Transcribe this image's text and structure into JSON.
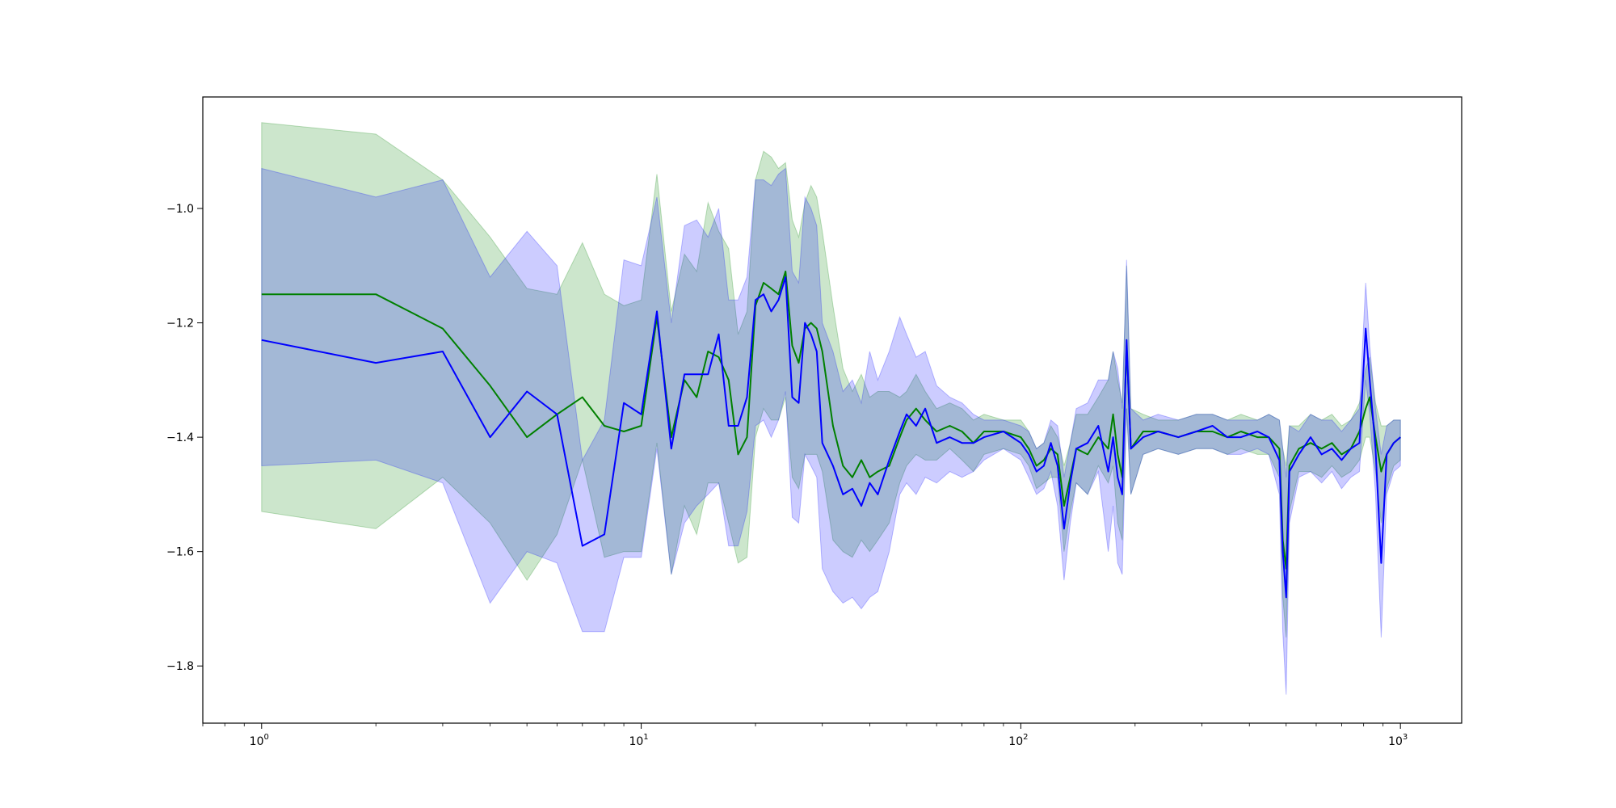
{
  "chart_data": {
    "type": "line",
    "title": "",
    "xlabel": "",
    "ylabel": "",
    "x_scale": "log",
    "xlim": [
      0.7,
      1450
    ],
    "ylim": [
      -1.9,
      -0.805
    ],
    "grid": false,
    "legend": "none",
    "x_ticks": [
      {
        "value": 1,
        "base": "10",
        "exp": "0"
      },
      {
        "value": 10,
        "base": "10",
        "exp": "1"
      },
      {
        "value": 100,
        "base": "10",
        "exp": "2"
      },
      {
        "value": 1000,
        "base": "10",
        "exp": "3"
      }
    ],
    "y_ticks": [
      {
        "value": -1.8,
        "label": "−1.8"
      },
      {
        "value": -1.6,
        "label": "−1.6"
      },
      {
        "value": -1.4,
        "label": "−1.4"
      },
      {
        "value": -1.2,
        "label": "−1.2"
      },
      {
        "value": -1.0,
        "label": "−1.0"
      }
    ],
    "series": [
      {
        "color": "#008000",
        "band_color": "#008000",
        "band_opacity": 0.2,
        "points": [
          [
            1,
            -1.15,
            -1.53,
            -0.85
          ],
          [
            2,
            -1.15,
            -1.56,
            -0.87
          ],
          [
            3,
            -1.21,
            -1.47,
            -0.95
          ],
          [
            4,
            -1.31,
            -1.55,
            -1.05
          ],
          [
            5,
            -1.4,
            -1.65,
            -1.14
          ],
          [
            6,
            -1.36,
            -1.57,
            -1.15
          ],
          [
            7,
            -1.33,
            -1.44,
            -1.06
          ],
          [
            8,
            -1.38,
            -1.61,
            -1.15
          ],
          [
            9,
            -1.39,
            -1.6,
            -1.17
          ],
          [
            10,
            -1.38,
            -1.6,
            -1.16
          ],
          [
            11,
            -1.19,
            -1.41,
            -0.94
          ],
          [
            12,
            -1.4,
            -1.64,
            -1.18
          ],
          [
            13,
            -1.3,
            -1.52,
            -1.08
          ],
          [
            14,
            -1.33,
            -1.57,
            -1.11
          ],
          [
            15,
            -1.25,
            -1.48,
            -0.99
          ],
          [
            16,
            -1.26,
            -1.48,
            -1.04
          ],
          [
            17,
            -1.3,
            -1.55,
            -1.07
          ],
          [
            18,
            -1.43,
            -1.62,
            -1.22
          ],
          [
            19,
            -1.4,
            -1.61,
            -1.18
          ],
          [
            20,
            -1.17,
            -1.4,
            -0.95
          ],
          [
            21,
            -1.13,
            -1.35,
            -0.9
          ],
          [
            22,
            -1.14,
            -1.37,
            -0.91
          ],
          [
            23,
            -1.15,
            -1.37,
            -0.93
          ],
          [
            24,
            -1.11,
            -1.33,
            -0.92
          ],
          [
            25,
            -1.24,
            -1.47,
            -1.02
          ],
          [
            26,
            -1.27,
            -1.49,
            -1.05
          ],
          [
            27,
            -1.21,
            -1.43,
            -0.99
          ],
          [
            28,
            -1.2,
            -1.43,
            -0.96
          ],
          [
            29,
            -1.21,
            -1.43,
            -0.98
          ],
          [
            30,
            -1.25,
            -1.46,
            -1.04
          ],
          [
            32,
            -1.38,
            -1.58,
            -1.17
          ],
          [
            34,
            -1.45,
            -1.6,
            -1.28
          ],
          [
            36,
            -1.47,
            -1.61,
            -1.32
          ],
          [
            38,
            -1.44,
            -1.58,
            -1.29
          ],
          [
            40,
            -1.47,
            -1.6,
            -1.33
          ],
          [
            42,
            -1.46,
            -1.58,
            -1.32
          ],
          [
            45,
            -1.45,
            -1.55,
            -1.32
          ],
          [
            48,
            -1.4,
            -1.48,
            -1.33
          ],
          [
            50,
            -1.37,
            -1.45,
            -1.32
          ],
          [
            53,
            -1.35,
            -1.43,
            -1.29
          ],
          [
            56,
            -1.37,
            -1.44,
            -1.32
          ],
          [
            60,
            -1.39,
            -1.44,
            -1.35
          ],
          [
            65,
            -1.38,
            -1.42,
            -1.34
          ],
          [
            70,
            -1.39,
            -1.44,
            -1.35
          ],
          [
            75,
            -1.41,
            -1.46,
            -1.37
          ],
          [
            80,
            -1.39,
            -1.43,
            -1.36
          ],
          [
            90,
            -1.39,
            -1.42,
            -1.37
          ],
          [
            100,
            -1.4,
            -1.43,
            -1.37
          ],
          [
            105,
            -1.42,
            -1.45,
            -1.39
          ],
          [
            110,
            -1.45,
            -1.49,
            -1.42
          ],
          [
            115,
            -1.44,
            -1.48,
            -1.41
          ],
          [
            120,
            -1.42,
            -1.47,
            -1.38
          ],
          [
            125,
            -1.43,
            -1.47,
            -1.4
          ],
          [
            130,
            -1.52,
            -1.6,
            -1.45
          ],
          [
            135,
            -1.47,
            -1.53,
            -1.41
          ],
          [
            140,
            -1.42,
            -1.48,
            -1.36
          ],
          [
            150,
            -1.43,
            -1.5,
            -1.36
          ],
          [
            160,
            -1.4,
            -1.45,
            -1.33
          ],
          [
            170,
            -1.42,
            -1.48,
            -1.3
          ],
          [
            175,
            -1.36,
            -1.45,
            -1.25
          ],
          [
            180,
            -1.43,
            -1.55,
            -1.3
          ],
          [
            185,
            -1.47,
            -1.58,
            -1.34
          ],
          [
            190,
            -1.24,
            -1.35,
            -1.1
          ],
          [
            195,
            -1.42,
            -1.5,
            -1.35
          ],
          [
            210,
            -1.39,
            -1.43,
            -1.36
          ],
          [
            230,
            -1.39,
            -1.42,
            -1.37
          ],
          [
            260,
            -1.4,
            -1.43,
            -1.37
          ],
          [
            290,
            -1.39,
            -1.42,
            -1.36
          ],
          [
            320,
            -1.39,
            -1.42,
            -1.36
          ],
          [
            350,
            -1.4,
            -1.43,
            -1.37
          ],
          [
            380,
            -1.39,
            -1.42,
            -1.36
          ],
          [
            420,
            -1.4,
            -1.43,
            -1.37
          ],
          [
            450,
            -1.4,
            -1.43,
            -1.36
          ],
          [
            480,
            -1.42,
            -1.47,
            -1.37
          ],
          [
            490,
            -1.58,
            -1.68,
            -1.42
          ],
          [
            500,
            -1.63,
            -1.75,
            -1.45
          ],
          [
            510,
            -1.45,
            -1.53,
            -1.38
          ],
          [
            540,
            -1.42,
            -1.46,
            -1.38
          ],
          [
            580,
            -1.41,
            -1.46,
            -1.36
          ],
          [
            620,
            -1.42,
            -1.47,
            -1.37
          ],
          [
            660,
            -1.41,
            -1.45,
            -1.36
          ],
          [
            700,
            -1.43,
            -1.47,
            -1.38
          ],
          [
            740,
            -1.42,
            -1.46,
            -1.37
          ],
          [
            780,
            -1.39,
            -1.44,
            -1.34
          ],
          [
            810,
            -1.35,
            -1.4,
            -1.28
          ],
          [
            830,
            -1.33,
            -1.4,
            -1.26
          ],
          [
            860,
            -1.4,
            -1.46,
            -1.34
          ],
          [
            890,
            -1.46,
            -1.55,
            -1.38
          ],
          [
            920,
            -1.43,
            -1.49,
            -1.38
          ],
          [
            960,
            -1.41,
            -1.45,
            -1.37
          ],
          [
            1000,
            -1.4,
            -1.44,
            -1.37
          ]
        ]
      },
      {
        "color": "#0000ff",
        "band_color": "#0000ff",
        "band_opacity": 0.2,
        "points": [
          [
            1,
            -1.23,
            -1.45,
            -0.93
          ],
          [
            2,
            -1.27,
            -1.44,
            -0.98
          ],
          [
            3,
            -1.25,
            -1.48,
            -0.95
          ],
          [
            4,
            -1.4,
            -1.69,
            -1.12
          ],
          [
            5,
            -1.32,
            -1.6,
            -1.04
          ],
          [
            6,
            -1.36,
            -1.62,
            -1.1
          ],
          [
            7,
            -1.59,
            -1.74,
            -1.44
          ],
          [
            8,
            -1.57,
            -1.74,
            -1.37
          ],
          [
            9,
            -1.34,
            -1.61,
            -1.09
          ],
          [
            10,
            -1.36,
            -1.61,
            -1.1
          ],
          [
            11,
            -1.18,
            -1.42,
            -0.98
          ],
          [
            12,
            -1.42,
            -1.64,
            -1.2
          ],
          [
            13,
            -1.29,
            -1.55,
            -1.03
          ],
          [
            14,
            -1.29,
            -1.52,
            -1.02
          ],
          [
            15,
            -1.29,
            -1.5,
            -1.05
          ],
          [
            16,
            -1.22,
            -1.48,
            -1.0
          ],
          [
            17,
            -1.38,
            -1.59,
            -1.16
          ],
          [
            18,
            -1.38,
            -1.59,
            -1.16
          ],
          [
            19,
            -1.33,
            -1.53,
            -1.12
          ],
          [
            20,
            -1.16,
            -1.38,
            -0.95
          ],
          [
            21,
            -1.15,
            -1.37,
            -0.95
          ],
          [
            22,
            -1.18,
            -1.4,
            -0.96
          ],
          [
            23,
            -1.16,
            -1.37,
            -0.94
          ],
          [
            24,
            -1.12,
            -1.32,
            -0.93
          ],
          [
            25,
            -1.33,
            -1.54,
            -1.11
          ],
          [
            26,
            -1.34,
            -1.55,
            -1.13
          ],
          [
            27,
            -1.2,
            -1.43,
            -0.98
          ],
          [
            28,
            -1.22,
            -1.45,
            -1.0
          ],
          [
            29,
            -1.25,
            -1.47,
            -1.03
          ],
          [
            30,
            -1.41,
            -1.63,
            -1.2
          ],
          [
            32,
            -1.45,
            -1.67,
            -1.25
          ],
          [
            34,
            -1.5,
            -1.69,
            -1.32
          ],
          [
            36,
            -1.49,
            -1.68,
            -1.3
          ],
          [
            38,
            -1.52,
            -1.7,
            -1.34
          ],
          [
            40,
            -1.48,
            -1.68,
            -1.25
          ],
          [
            42,
            -1.5,
            -1.67,
            -1.3
          ],
          [
            45,
            -1.44,
            -1.6,
            -1.25
          ],
          [
            48,
            -1.39,
            -1.5,
            -1.19
          ],
          [
            50,
            -1.36,
            -1.48,
            -1.22
          ],
          [
            53,
            -1.38,
            -1.5,
            -1.26
          ],
          [
            56,
            -1.35,
            -1.47,
            -1.25
          ],
          [
            60,
            -1.41,
            -1.48,
            -1.31
          ],
          [
            65,
            -1.4,
            -1.46,
            -1.33
          ],
          [
            70,
            -1.41,
            -1.47,
            -1.34
          ],
          [
            75,
            -1.41,
            -1.46,
            -1.36
          ],
          [
            80,
            -1.4,
            -1.44,
            -1.37
          ],
          [
            90,
            -1.39,
            -1.42,
            -1.37
          ],
          [
            100,
            -1.41,
            -1.44,
            -1.38
          ],
          [
            105,
            -1.43,
            -1.47,
            -1.39
          ],
          [
            110,
            -1.46,
            -1.5,
            -1.42
          ],
          [
            115,
            -1.45,
            -1.49,
            -1.41
          ],
          [
            120,
            -1.41,
            -1.46,
            -1.37
          ],
          [
            125,
            -1.45,
            -1.52,
            -1.38
          ],
          [
            130,
            -1.56,
            -1.65,
            -1.47
          ],
          [
            135,
            -1.48,
            -1.55,
            -1.41
          ],
          [
            140,
            -1.42,
            -1.48,
            -1.35
          ],
          [
            150,
            -1.41,
            -1.5,
            -1.34
          ],
          [
            160,
            -1.38,
            -1.46,
            -1.3
          ],
          [
            170,
            -1.46,
            -1.6,
            -1.3
          ],
          [
            175,
            -1.4,
            -1.52,
            -1.25
          ],
          [
            180,
            -1.47,
            -1.62,
            -1.28
          ],
          [
            185,
            -1.5,
            -1.64,
            -1.35
          ],
          [
            190,
            -1.23,
            -1.35,
            -1.09
          ],
          [
            195,
            -1.42,
            -1.5,
            -1.35
          ],
          [
            210,
            -1.4,
            -1.43,
            -1.37
          ],
          [
            230,
            -1.39,
            -1.42,
            -1.36
          ],
          [
            260,
            -1.4,
            -1.43,
            -1.37
          ],
          [
            290,
            -1.39,
            -1.42,
            -1.36
          ],
          [
            320,
            -1.38,
            -1.42,
            -1.36
          ],
          [
            350,
            -1.4,
            -1.43,
            -1.37
          ],
          [
            380,
            -1.4,
            -1.43,
            -1.37
          ],
          [
            420,
            -1.39,
            -1.42,
            -1.37
          ],
          [
            450,
            -1.4,
            -1.43,
            -1.36
          ],
          [
            480,
            -1.44,
            -1.5,
            -1.37
          ],
          [
            490,
            -1.6,
            -1.74,
            -1.42
          ],
          [
            500,
            -1.68,
            -1.85,
            -1.47
          ],
          [
            510,
            -1.46,
            -1.55,
            -1.38
          ],
          [
            540,
            -1.43,
            -1.47,
            -1.39
          ],
          [
            580,
            -1.4,
            -1.46,
            -1.36
          ],
          [
            620,
            -1.43,
            -1.48,
            -1.37
          ],
          [
            660,
            -1.42,
            -1.46,
            -1.37
          ],
          [
            700,
            -1.44,
            -1.49,
            -1.39
          ],
          [
            740,
            -1.42,
            -1.47,
            -1.37
          ],
          [
            780,
            -1.41,
            -1.46,
            -1.35
          ],
          [
            810,
            -1.21,
            -1.3,
            -1.13
          ],
          [
            830,
            -1.3,
            -1.36,
            -1.24
          ],
          [
            860,
            -1.42,
            -1.5,
            -1.35
          ],
          [
            890,
            -1.62,
            -1.75,
            -1.43
          ],
          [
            920,
            -1.43,
            -1.5,
            -1.38
          ],
          [
            960,
            -1.41,
            -1.46,
            -1.37
          ],
          [
            1000,
            -1.4,
            -1.45,
            -1.37
          ]
        ]
      }
    ]
  }
}
